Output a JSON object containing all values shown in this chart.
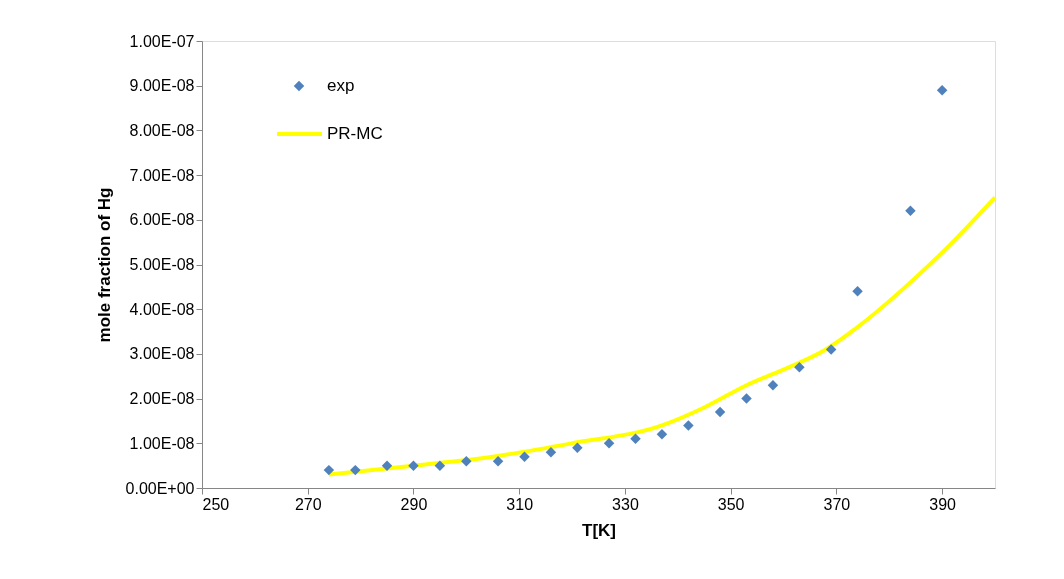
{
  "chart_data": {
    "type": "scatter",
    "xlabel": "T[K]",
    "ylabel": "mole fraction of Hg",
    "xlim": [
      250,
      400
    ],
    "xticks": [
      250,
      270,
      290,
      310,
      330,
      350,
      370,
      390
    ],
    "ylim": [
      0,
      1e-07
    ],
    "yticks": [
      {
        "value": 0,
        "label": "0.00E+00"
      },
      {
        "value": 1e-08,
        "label": "1.00E-08"
      },
      {
        "value": 2e-08,
        "label": "2.00E-08"
      },
      {
        "value": 3e-08,
        "label": "3.00E-08"
      },
      {
        "value": 4e-08,
        "label": "4.00E-08"
      },
      {
        "value": 5e-08,
        "label": "5.00E-08"
      },
      {
        "value": 6e-08,
        "label": "6.00E-08"
      },
      {
        "value": 7e-08,
        "label": "7.00E-08"
      },
      {
        "value": 8e-08,
        "label": "8.00E-08"
      },
      {
        "value": 9e-08,
        "label": "9.00E-08"
      },
      {
        "value": 1e-07,
        "label": "1.00E-07"
      }
    ],
    "grid": false,
    "legend": "top left",
    "series": [
      {
        "name": "exp",
        "marker": "diamond",
        "color": "#4f81bd",
        "x": [
          274,
          279,
          285,
          290,
          295,
          300,
          306,
          311,
          316,
          321,
          327,
          332,
          337,
          342,
          348,
          353,
          358,
          363,
          369,
          374,
          384,
          390
        ],
        "values": [
          4e-09,
          4e-09,
          5e-09,
          5e-09,
          5e-09,
          6e-09,
          6e-09,
          7e-09,
          8e-09,
          9e-09,
          1e-08,
          1.1e-08,
          1.2e-08,
          1.4e-08,
          1.7e-08,
          2e-08,
          2.3e-08,
          2.7e-08,
          3.1e-08,
          4.4e-08,
          6.2e-08,
          8.9e-08
        ]
      },
      {
        "name": "PR-MC",
        "type": "line",
        "line_style": "solid",
        "color": "#ffff00",
        "x": [
          274,
          290,
          305,
          320,
          337,
          345,
          353,
          361,
          368,
          374,
          384,
          392,
          400
        ],
        "values": [
          3e-09,
          5e-09,
          7e-09,
          1e-08,
          1.4e-08,
          1.8e-08,
          2.3e-08,
          2.7e-08,
          3.1e-08,
          3.6e-08,
          4.6e-08,
          5.5e-08,
          6.5e-08
        ]
      }
    ]
  }
}
